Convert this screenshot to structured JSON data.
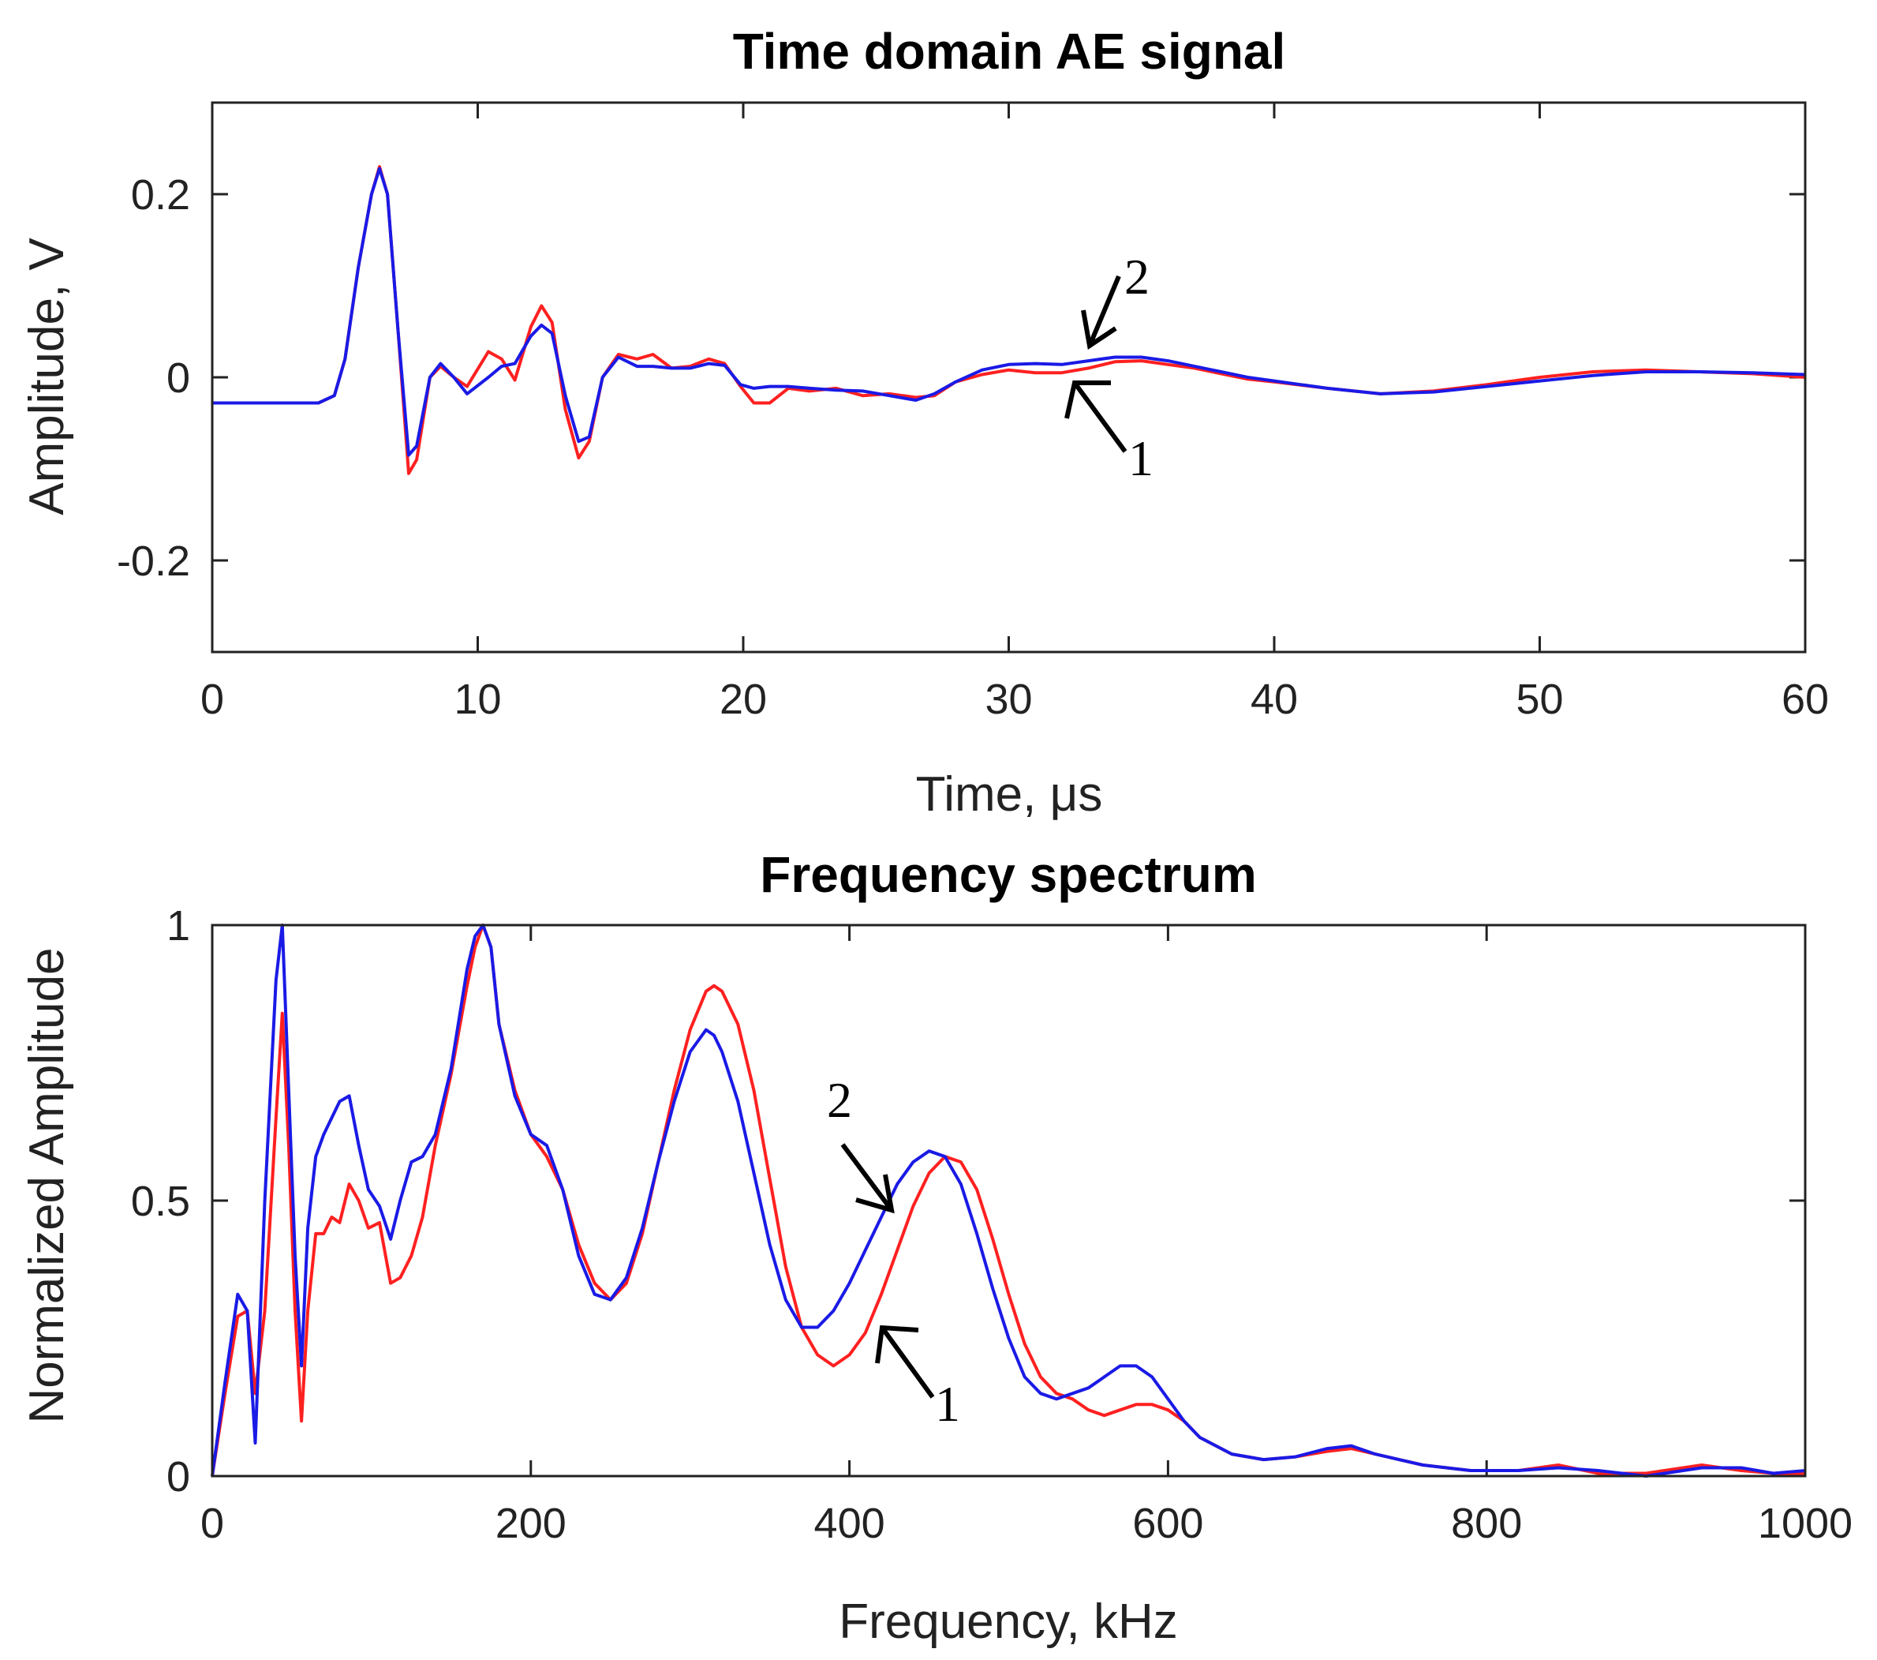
{
  "chart_data": [
    {
      "type": "line",
      "title": "Time domain AE signal",
      "xlabel": "Time, μs",
      "ylabel": "Amplitude, V",
      "xlim": [
        0,
        60
      ],
      "ylim": [
        -0.3,
        0.3
      ],
      "xticks": [
        "0",
        "10",
        "20",
        "30",
        "40",
        "50",
        "60"
      ],
      "yticks": [
        "-0.2",
        "0",
        "0.2"
      ],
      "grid": false,
      "series": [
        {
          "name": "1",
          "color": "#ff2020",
          "x": [
            0,
            4,
            4.6,
            5,
            5.5,
            6,
            6.3,
            6.6,
            7,
            7.4,
            7.7,
            8.2,
            8.6,
            9.1,
            9.6,
            10.4,
            10.9,
            11.4,
            12,
            12.4,
            12.8,
            13.3,
            13.8,
            14.2,
            14.7,
            15.3,
            16,
            16.6,
            17.3,
            18,
            18.7,
            19.3,
            19.9,
            20.4,
            21,
            21.7,
            22.5,
            23.5,
            24.5,
            25.5,
            26.5,
            27.2,
            28,
            29,
            30,
            31,
            32,
            33,
            34,
            35,
            36,
            37,
            38,
            39,
            40,
            42,
            44,
            46,
            48,
            50,
            52,
            54,
            56,
            58,
            60
          ],
          "y": [
            -0.028,
            -0.028,
            -0.02,
            0.02,
            0.12,
            0.2,
            0.23,
            0.2,
            0.05,
            -0.105,
            -0.09,
            0.0,
            0.012,
            0.0,
            -0.01,
            0.028,
            0.02,
            -0.003,
            0.055,
            0.078,
            0.06,
            -0.035,
            -0.088,
            -0.07,
            0.0,
            0.025,
            0.02,
            0.025,
            0.01,
            0.012,
            0.02,
            0.015,
            -0.01,
            -0.028,
            -0.028,
            -0.012,
            -0.015,
            -0.012,
            -0.02,
            -0.018,
            -0.022,
            -0.02,
            -0.005,
            0.003,
            0.008,
            0.005,
            0.005,
            0.01,
            0.017,
            0.018,
            0.014,
            0.01,
            0.004,
            -0.002,
            -0.005,
            -0.012,
            -0.018,
            -0.015,
            -0.008,
            0.0,
            0.006,
            0.008,
            0.006,
            0.004,
            0.0
          ]
        },
        {
          "name": "2",
          "color": "#1a1ae6",
          "x": [
            0,
            4,
            4.6,
            5,
            5.5,
            6,
            6.3,
            6.6,
            7,
            7.4,
            7.7,
            8.2,
            8.6,
            9.1,
            9.6,
            10.4,
            10.9,
            11.4,
            12,
            12.4,
            12.8,
            13.3,
            13.8,
            14.2,
            14.7,
            15.3,
            16,
            16.6,
            17.3,
            18,
            18.7,
            19.3,
            19.9,
            20.4,
            21,
            21.7,
            22.5,
            23.5,
            24.5,
            25.5,
            26.5,
            27.2,
            28,
            29,
            30,
            31,
            32,
            33,
            34,
            35,
            36,
            37,
            38,
            39,
            40,
            42,
            44,
            46,
            48,
            50,
            52,
            54,
            56,
            58,
            60
          ],
          "y": [
            -0.028,
            -0.028,
            -0.02,
            0.02,
            0.12,
            0.2,
            0.228,
            0.2,
            0.05,
            -0.085,
            -0.075,
            0.0,
            0.015,
            0.0,
            -0.018,
            0.0,
            0.012,
            0.015,
            0.045,
            0.057,
            0.048,
            -0.02,
            -0.07,
            -0.065,
            0.0,
            0.022,
            0.012,
            0.012,
            0.01,
            0.01,
            0.015,
            0.013,
            -0.008,
            -0.012,
            -0.01,
            -0.01,
            -0.012,
            -0.014,
            -0.015,
            -0.02,
            -0.025,
            -0.018,
            -0.005,
            0.008,
            0.014,
            0.015,
            0.014,
            0.018,
            0.022,
            0.022,
            0.018,
            0.012,
            0.006,
            0.0,
            -0.004,
            -0.012,
            -0.018,
            -0.016,
            -0.01,
            -0.004,
            0.002,
            0.006,
            0.006,
            0.005,
            0.003
          ]
        }
      ],
      "annotations": [
        "1",
        "2"
      ]
    },
    {
      "type": "line",
      "title": "Frequency spectrum",
      "xlabel": "Frequency, kHz",
      "ylabel": "Normalized Amplitude",
      "xlim": [
        0,
        1000
      ],
      "ylim": [
        0,
        1
      ],
      "xticks": [
        "0",
        "200",
        "400",
        "600",
        "800",
        "1000"
      ],
      "yticks": [
        "0",
        "0.5",
        "1"
      ],
      "grid": false,
      "series": [
        {
          "name": "1",
          "color": "#ff2020",
          "x": [
            0,
            8,
            16,
            22,
            27,
            33,
            40,
            44,
            48,
            52,
            56,
            60,
            65,
            70,
            75,
            80,
            86,
            92,
            98,
            105,
            112,
            118,
            125,
            132,
            140,
            150,
            160,
            165,
            170,
            175,
            180,
            190,
            200,
            210,
            220,
            230,
            240,
            250,
            260,
            270,
            280,
            290,
            300,
            310,
            315,
            320,
            330,
            340,
            350,
            360,
            370,
            380,
            390,
            400,
            410,
            420,
            430,
            440,
            450,
            460,
            470,
            480,
            490,
            500,
            510,
            520,
            530,
            540,
            550,
            560,
            570,
            580,
            590,
            600,
            610,
            620,
            640,
            660,
            680,
            700,
            715,
            730,
            760,
            790,
            820,
            845,
            870,
            900,
            935,
            960,
            980,
            1000
          ],
          "y": [
            0,
            0.15,
            0.29,
            0.3,
            0.15,
            0.3,
            0.65,
            0.84,
            0.6,
            0.3,
            0.1,
            0.3,
            0.44,
            0.44,
            0.47,
            0.46,
            0.53,
            0.5,
            0.45,
            0.46,
            0.35,
            0.36,
            0.4,
            0.47,
            0.6,
            0.73,
            0.89,
            0.96,
            1.0,
            0.96,
            0.82,
            0.7,
            0.62,
            0.58,
            0.52,
            0.42,
            0.35,
            0.32,
            0.35,
            0.44,
            0.57,
            0.7,
            0.81,
            0.88,
            0.89,
            0.88,
            0.82,
            0.7,
            0.54,
            0.38,
            0.27,
            0.22,
            0.2,
            0.22,
            0.26,
            0.33,
            0.41,
            0.49,
            0.55,
            0.58,
            0.57,
            0.52,
            0.43,
            0.33,
            0.24,
            0.18,
            0.15,
            0.14,
            0.12,
            0.11,
            0.12,
            0.13,
            0.13,
            0.12,
            0.1,
            0.07,
            0.04,
            0.03,
            0.035,
            0.045,
            0.05,
            0.04,
            0.02,
            0.01,
            0.01,
            0.02,
            0.005,
            0.005,
            0.02,
            0.01,
            0.005,
            0.005
          ]
        },
        {
          "name": "2",
          "color": "#1a1ae6",
          "x": [
            0,
            8,
            16,
            22,
            27,
            33,
            40,
            44,
            48,
            52,
            56,
            60,
            65,
            70,
            75,
            80,
            86,
            92,
            98,
            105,
            112,
            118,
            125,
            132,
            140,
            150,
            160,
            165,
            170,
            175,
            180,
            190,
            200,
            210,
            220,
            230,
            240,
            250,
            260,
            270,
            280,
            290,
            300,
            310,
            315,
            320,
            330,
            340,
            350,
            360,
            370,
            380,
            390,
            400,
            410,
            420,
            430,
            440,
            450,
            460,
            470,
            480,
            490,
            500,
            510,
            520,
            530,
            540,
            550,
            560,
            570,
            580,
            590,
            600,
            610,
            620,
            640,
            660,
            680,
            700,
            715,
            730,
            760,
            790,
            820,
            845,
            870,
            900,
            935,
            960,
            980,
            1000
          ],
          "y": [
            0,
            0.17,
            0.33,
            0.3,
            0.06,
            0.5,
            0.9,
            1.0,
            0.7,
            0.4,
            0.2,
            0.45,
            0.58,
            0.62,
            0.65,
            0.68,
            0.69,
            0.6,
            0.52,
            0.49,
            0.43,
            0.5,
            0.57,
            0.58,
            0.62,
            0.74,
            0.92,
            0.98,
            1.0,
            0.96,
            0.82,
            0.69,
            0.62,
            0.6,
            0.52,
            0.4,
            0.33,
            0.32,
            0.36,
            0.45,
            0.57,
            0.68,
            0.77,
            0.81,
            0.8,
            0.77,
            0.68,
            0.55,
            0.42,
            0.32,
            0.27,
            0.27,
            0.3,
            0.35,
            0.41,
            0.47,
            0.53,
            0.57,
            0.59,
            0.58,
            0.53,
            0.44,
            0.34,
            0.25,
            0.18,
            0.15,
            0.14,
            0.15,
            0.16,
            0.18,
            0.2,
            0.2,
            0.18,
            0.14,
            0.1,
            0.07,
            0.04,
            0.03,
            0.035,
            0.05,
            0.055,
            0.04,
            0.02,
            0.01,
            0.01,
            0.015,
            0.01,
            0.0,
            0.015,
            0.015,
            0.005,
            0.01
          ]
        }
      ],
      "annotations": [
        "2",
        "1"
      ]
    }
  ]
}
